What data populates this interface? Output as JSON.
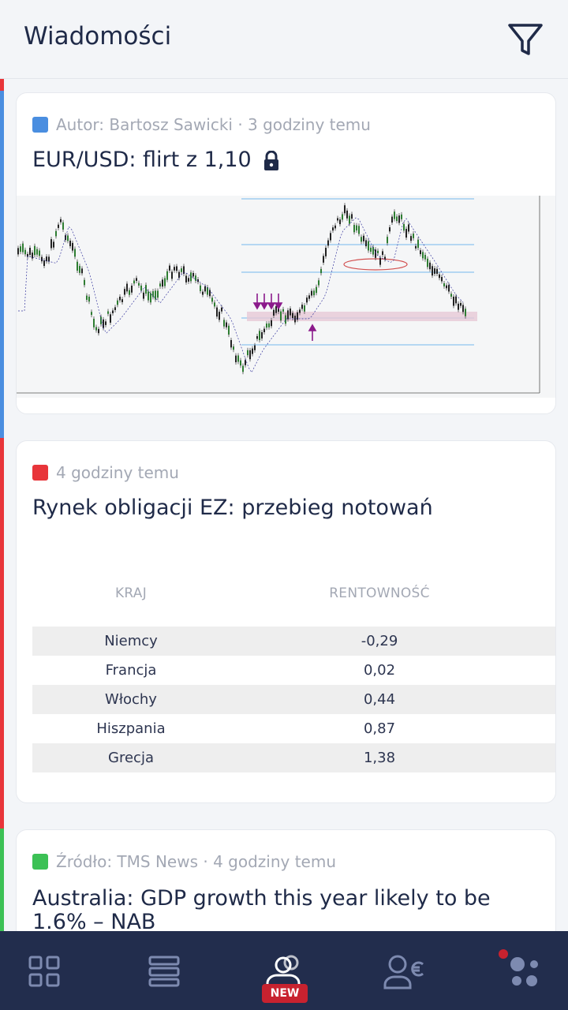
{
  "header": {
    "title": "Wiadomości"
  },
  "articles": [
    {
      "category_color": "#4a8ee0",
      "meta": "Autor: Bartosz Sawicki · 3 godziny temu",
      "title": "EUR/USD: flirt z 1,10",
      "locked": true
    },
    {
      "category_color": "#e8353a",
      "meta": "4 godziny temu",
      "title": "Rynek obligacji EZ: przebieg notowań",
      "table": {
        "headers": [
          "KRAJ",
          "RENTOWNOŚĆ"
        ],
        "rows": [
          [
            "Niemcy",
            "-0,29"
          ],
          [
            "Francja",
            "0,02"
          ],
          [
            "Włochy",
            "0,44"
          ],
          [
            "Hiszpania",
            "0,87"
          ],
          [
            "Grecja",
            "1,38"
          ]
        ]
      }
    },
    {
      "category_color": "#3cc155",
      "meta": "Źródło: TMS News · 4 godziny temu",
      "title": "Australia: GDP growth this year likely to be 1.6% – NAB"
    }
  ],
  "nav": {
    "items": [
      "dashboard-icon",
      "list-icon",
      "community-icon",
      "account-euro-icon",
      "more-icon"
    ],
    "new_badge": "NEW",
    "active_color": "#ffffff",
    "inactive_color": "#7d8ab0"
  }
}
